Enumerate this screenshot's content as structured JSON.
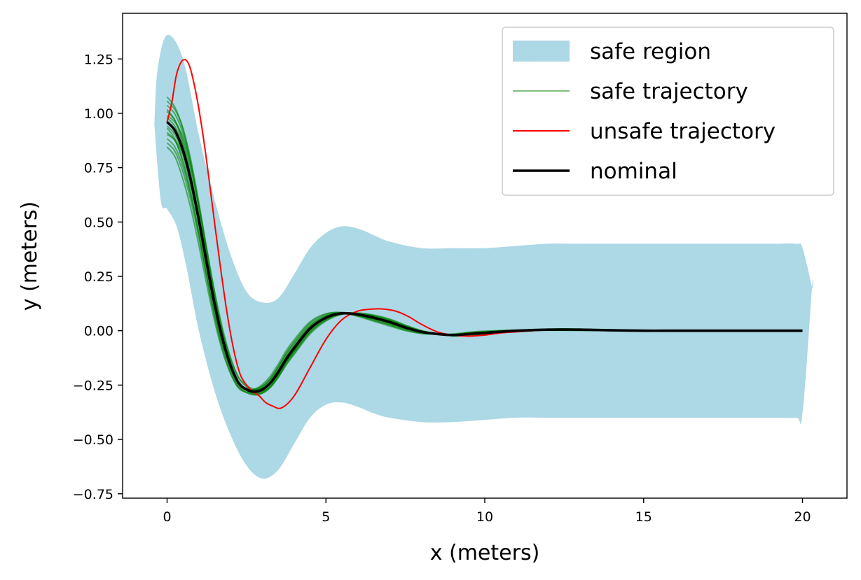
{
  "chart_data": {
    "type": "line",
    "title": "",
    "xlabel": "x (meters)",
    "ylabel": "y (meters)",
    "xlim": [
      -1.4,
      21.4
    ],
    "ylim": [
      -0.77,
      1.46
    ],
    "xticks": [
      0,
      5,
      10,
      15,
      20
    ],
    "yticks": [
      -0.75,
      -0.5,
      -0.25,
      0.0,
      0.25,
      0.5,
      0.75,
      1.0,
      1.25
    ],
    "xtick_labels": [
      "0",
      "5",
      "10",
      "15",
      "20"
    ],
    "ytick_labels": [
      "−0.75",
      "−0.50",
      "−0.25",
      "0.00",
      "0.25",
      "0.50",
      "0.75",
      "1.00",
      "1.25"
    ],
    "grid": false,
    "legend_position": "top-right",
    "legend": [
      {
        "label": "safe region",
        "kind": "patch",
        "color": "#add8e6"
      },
      {
        "label": "safe trajectory",
        "kind": "line",
        "color": "#008000",
        "alpha": 0.5
      },
      {
        "label": "unsafe trajectory",
        "kind": "line",
        "color": "#ff0000"
      },
      {
        "label": "nominal",
        "kind": "line",
        "color": "#000000"
      }
    ],
    "safe_region": {
      "color": "#add8e6",
      "upper": {
        "x": [
          -0.4,
          -0.3,
          0.0,
          0.5,
          1.0,
          1.5,
          2.0,
          2.5,
          3.0,
          3.5,
          4.0,
          4.5,
          5.0,
          5.5,
          6.0,
          6.5,
          7.0,
          8.0,
          9.0,
          10.0,
          11.0,
          12.0,
          13.0,
          14.0,
          15.0,
          16.0,
          17.0,
          18.0,
          19.0,
          19.8,
          20.0,
          20.3
        ],
        "y": [
          0.95,
          1.2,
          1.36,
          1.25,
          0.9,
          0.6,
          0.35,
          0.18,
          0.13,
          0.15,
          0.26,
          0.38,
          0.45,
          0.48,
          0.47,
          0.44,
          0.41,
          0.38,
          0.38,
          0.38,
          0.39,
          0.4,
          0.4,
          0.4,
          0.4,
          0.4,
          0.4,
          0.4,
          0.4,
          0.4,
          0.38,
          0.2
        ]
      },
      "lower": {
        "x": [
          -0.4,
          -0.2,
          0.0,
          0.3,
          0.6,
          1.0,
          1.5,
          2.0,
          2.5,
          3.0,
          3.5,
          4.0,
          4.5,
          5.0,
          5.5,
          6.0,
          6.5,
          7.0,
          8.0,
          9.0,
          10.0,
          11.0,
          12.0,
          13.0,
          14.0,
          15.0,
          16.0,
          17.0,
          18.0,
          19.0,
          19.8,
          20.0,
          20.3
        ],
        "y": [
          0.95,
          0.6,
          0.56,
          0.48,
          0.3,
          0.0,
          -0.28,
          -0.48,
          -0.62,
          -0.68,
          -0.64,
          -0.52,
          -0.4,
          -0.34,
          -0.33,
          -0.35,
          -0.38,
          -0.4,
          -0.42,
          -0.42,
          -0.41,
          -0.4,
          -0.4,
          -0.4,
          -0.4,
          -0.4,
          -0.4,
          -0.4,
          -0.4,
          -0.4,
          -0.4,
          -0.38,
          0.2
        ]
      }
    },
    "nominal": {
      "color": "#000000",
      "x": [
        0.0,
        0.25,
        0.5,
        0.75,
        1.0,
        1.25,
        1.5,
        1.75,
        2.0,
        2.25,
        2.5,
        2.75,
        3.0,
        3.25,
        3.5,
        3.75,
        4.0,
        4.5,
        5.0,
        5.5,
        6.0,
        6.5,
        7.0,
        7.5,
        8.0,
        8.5,
        9.0,
        9.5,
        10.0,
        11.0,
        12.0,
        13.0,
        14.0,
        15.0,
        16.0,
        17.0,
        18.0,
        19.0,
        20.0
      ],
      "y": [
        0.96,
        0.92,
        0.83,
        0.69,
        0.51,
        0.31,
        0.12,
        -0.04,
        -0.16,
        -0.24,
        -0.27,
        -0.28,
        -0.27,
        -0.24,
        -0.19,
        -0.13,
        -0.08,
        0.01,
        0.06,
        0.08,
        0.075,
        0.06,
        0.04,
        0.015,
        -0.005,
        -0.015,
        -0.02,
        -0.015,
        -0.01,
        0.0,
        0.005,
        0.005,
        0.002,
        0.0,
        0.0,
        0.0,
        0.0,
        0.0,
        0.0
      ]
    },
    "unsafe_trajectory": {
      "color": "#ff0000",
      "x": [
        0.0,
        0.15,
        0.3,
        0.5,
        0.7,
        0.9,
        1.1,
        1.3,
        1.5,
        1.7,
        1.9,
        2.1,
        2.3,
        2.5,
        2.7,
        2.9,
        3.1,
        3.3,
        3.6,
        4.0,
        4.5,
        5.0,
        5.5,
        6.0,
        6.5,
        6.8,
        7.2,
        7.6,
        8.0,
        8.5,
        9.0,
        9.5,
        10.0,
        10.5,
        11.0,
        11.5,
        12.0,
        12.5
      ],
      "y": [
        0.96,
        1.05,
        1.18,
        1.245,
        1.22,
        1.1,
        0.93,
        0.72,
        0.49,
        0.27,
        0.07,
        -0.09,
        -0.2,
        -0.25,
        -0.28,
        -0.3,
        -0.33,
        -0.345,
        -0.355,
        -0.3,
        -0.17,
        -0.04,
        0.05,
        0.09,
        0.1,
        0.1,
        0.09,
        0.065,
        0.03,
        -0.005,
        -0.02,
        -0.025,
        -0.02,
        -0.01,
        -0.005,
        0.0,
        0.005,
        0.005
      ]
    },
    "safe_trajectories": {
      "color": "#008000",
      "alpha": 0.55,
      "variants": [
        {
          "scale": 1.0,
          "dy": 0.0
        },
        {
          "scale": 1.02,
          "dy": 0.01
        },
        {
          "scale": 0.98,
          "dy": -0.01
        },
        {
          "scale": 1.05,
          "dy": 0.02
        },
        {
          "scale": 0.95,
          "dy": -0.02
        },
        {
          "scale": 1.08,
          "dy": 0.04
        },
        {
          "scale": 0.92,
          "dy": -0.04
        },
        {
          "scale": 1.1,
          "dy": 0.06
        },
        {
          "scale": 0.9,
          "dy": -0.06
        },
        {
          "scale": 1.03,
          "dy": 0.08
        },
        {
          "scale": 0.97,
          "dy": -0.08
        },
        {
          "scale": 1.06,
          "dy": -0.03
        },
        {
          "scale": 0.94,
          "dy": 0.05
        },
        {
          "scale": 0.88,
          "dy": -0.1
        },
        {
          "scale": 1.12,
          "dy": 0.02
        }
      ]
    }
  }
}
